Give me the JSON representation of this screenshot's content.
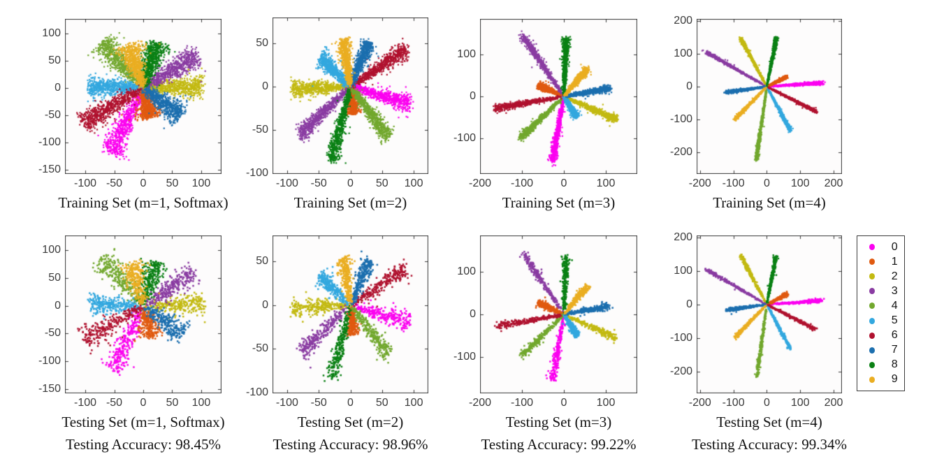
{
  "classes": [
    {
      "label": "0",
      "color": "#FB02F0"
    },
    {
      "label": "1",
      "color": "#E05A10"
    },
    {
      "label": "2",
      "color": "#C3BA12"
    },
    {
      "label": "3",
      "color": "#8A3CA2"
    },
    {
      "label": "4",
      "color": "#72A82E"
    },
    {
      "label": "5",
      "color": "#33A8DF"
    },
    {
      "label": "6",
      "color": "#B0122F"
    },
    {
      "label": "7",
      "color": "#1C6FAF"
    },
    {
      "label": "8",
      "color": "#0A8014"
    },
    {
      "label": "9",
      "color": "#EAAE22"
    }
  ],
  "chart_data": [
    {
      "type": "scatter",
      "id": "training-m1",
      "title": "Training Set (m=1, Softmax)",
      "caption": "",
      "xlim": [
        -135,
        135
      ],
      "ylim": [
        -158,
        127
      ],
      "xticks": [
        -100,
        -50,
        0,
        50,
        100
      ],
      "yticks": [
        100,
        50,
        0,
        -50,
        -100,
        -150
      ],
      "density": "dense",
      "spread": 11,
      "clusters": [
        {
          "class": "0",
          "angle": -115,
          "rmax": 135
        },
        {
          "class": "1",
          "angle": -77,
          "rmax": 58
        },
        {
          "class": "2",
          "angle": 2,
          "rmax": 105
        },
        {
          "class": "3",
          "angle": 33,
          "rmax": 113
        },
        {
          "class": "4",
          "angle": 131,
          "rmax": 113
        },
        {
          "class": "5",
          "angle": 179,
          "rmax": 97
        },
        {
          "class": "6",
          "angle": -148,
          "rmax": 126
        },
        {
          "class": "7",
          "angle": -38,
          "rmax": 85
        },
        {
          "class": "8",
          "angle": 74,
          "rmax": 89
        },
        {
          "class": "9",
          "angle": 107,
          "rmax": 86
        }
      ]
    },
    {
      "type": "scatter",
      "id": "training-m2",
      "title": "Training Set (m=2)",
      "caption": "",
      "xlim": [
        -123,
        123
      ],
      "ylim": [
        -101,
        80
      ],
      "xticks": [
        -100,
        -50,
        0,
        50,
        100
      ],
      "yticks": [
        50,
        0,
        -50,
        -100
      ],
      "density": "dense",
      "spread": 5.5,
      "clusters": [
        {
          "class": "0",
          "angle": -12,
          "rmax": 99
        },
        {
          "class": "1",
          "angle": -80,
          "rmax": 33
        },
        {
          "class": "2",
          "angle": 182,
          "rmax": 96
        },
        {
          "class": "3",
          "angle": -145,
          "rmax": 100
        },
        {
          "class": "4",
          "angle": -44,
          "rmax": 86
        },
        {
          "class": "5",
          "angle": 145,
          "rmax": 60
        },
        {
          "class": "6",
          "angle": 26,
          "rmax": 101
        },
        {
          "class": "7",
          "angle": 60,
          "rmax": 61
        },
        {
          "class": "8",
          "angle": -109,
          "rmax": 93
        },
        {
          "class": "9",
          "angle": 102,
          "rmax": 57
        }
      ]
    },
    {
      "type": "scatter",
      "id": "training-m3",
      "title": "Training Set (m=3)",
      "caption": "",
      "xlim": [
        -200,
        175
      ],
      "ylim": [
        -185,
        185
      ],
      "xticks": [
        -200,
        -100,
        0,
        100
      ],
      "yticks": [
        100,
        0,
        -100
      ],
      "density": "dense",
      "spread": 4.5,
      "clusters": [
        {
          "class": "0",
          "angle": -100,
          "rmax": 162
        },
        {
          "class": "1",
          "angle": 156,
          "rmax": 68
        },
        {
          "class": "2",
          "angle": -24,
          "rmax": 140
        },
        {
          "class": "3",
          "angle": 124,
          "rmax": 179
        },
        {
          "class": "4",
          "angle": -136,
          "rmax": 146
        },
        {
          "class": "5",
          "angle": -58,
          "rmax": 61
        },
        {
          "class": "6",
          "angle": 190,
          "rmax": 171
        },
        {
          "class": "7",
          "angle": 10,
          "rmax": 114
        },
        {
          "class": "8",
          "angle": 88,
          "rmax": 142
        },
        {
          "class": "9",
          "angle": 50,
          "rmax": 89
        }
      ]
    },
    {
      "type": "scatter",
      "id": "training-m4",
      "title": "Training Set (m=4)",
      "caption": "",
      "xlim": [
        -210,
        225
      ],
      "ylim": [
        -265,
        206
      ],
      "xticks": [
        -200,
        -100,
        0,
        100,
        200
      ],
      "yticks": [
        200,
        100,
        0,
        -100,
        -200
      ],
      "density": "dense",
      "spread": 2.7,
      "clusters": [
        {
          "class": "0",
          "angle": 4,
          "rmax": 172
        },
        {
          "class": "1",
          "angle": 27,
          "rmax": 70
        },
        {
          "class": "2",
          "angle": 118,
          "rmax": 170
        },
        {
          "class": "3",
          "angle": 150,
          "rmax": 216
        },
        {
          "class": "4",
          "angle": -98,
          "rmax": 227
        },
        {
          "class": "5",
          "angle": -62,
          "rmax": 156
        },
        {
          "class": "6",
          "angle": -27,
          "rmax": 171
        },
        {
          "class": "7",
          "angle": 188,
          "rmax": 126
        },
        {
          "class": "8",
          "angle": 79,
          "rmax": 155
        },
        {
          "class": "9",
          "angle": -134,
          "rmax": 141
        }
      ]
    },
    {
      "type": "scatter",
      "id": "testing-m1",
      "title": "Testing Set (m=1, Softmax)",
      "caption": "Testing Accuracy: 98.45%",
      "xlim": [
        -135,
        135
      ],
      "ylim": [
        -158,
        127
      ],
      "xticks": [
        -100,
        -50,
        0,
        50,
        100
      ],
      "yticks": [
        100,
        50,
        0,
        -50,
        -100,
        -150
      ],
      "density": "sparse",
      "spread": 11.5,
      "clusters": [
        {
          "class": "0",
          "angle": -114,
          "rmax": 132
        },
        {
          "class": "1",
          "angle": -76,
          "rmax": 60
        },
        {
          "class": "2",
          "angle": 1,
          "rmax": 108
        },
        {
          "class": "3",
          "angle": 34,
          "rmax": 110
        },
        {
          "class": "4",
          "angle": 130,
          "rmax": 115
        },
        {
          "class": "5",
          "angle": 178,
          "rmax": 95
        },
        {
          "class": "6",
          "angle": -149,
          "rmax": 122
        },
        {
          "class": "7",
          "angle": -37,
          "rmax": 88
        },
        {
          "class": "8",
          "angle": 75,
          "rmax": 85
        },
        {
          "class": "9",
          "angle": 106,
          "rmax": 84
        }
      ]
    },
    {
      "type": "scatter",
      "id": "testing-m2",
      "title": "Testing Set (m=2)",
      "caption": "Testing Accuracy: 98.96%",
      "xlim": [
        -123,
        123
      ],
      "ylim": [
        -101,
        80
      ],
      "xticks": [
        -100,
        -50,
        0,
        50,
        100
      ],
      "yticks": [
        50,
        0,
        -50,
        -100
      ],
      "density": "sparse",
      "spread": 5.8,
      "clusters": [
        {
          "class": "0",
          "angle": -12,
          "rmax": 98
        },
        {
          "class": "1",
          "angle": -81,
          "rmax": 35
        },
        {
          "class": "2",
          "angle": 182,
          "rmax": 95
        },
        {
          "class": "3",
          "angle": -145,
          "rmax": 99
        },
        {
          "class": "4",
          "angle": -44,
          "rmax": 85
        },
        {
          "class": "5",
          "angle": 145,
          "rmax": 61
        },
        {
          "class": "6",
          "angle": 26,
          "rmax": 100
        },
        {
          "class": "7",
          "angle": 60,
          "rmax": 62
        },
        {
          "class": "8",
          "angle": -109,
          "rmax": 92
        },
        {
          "class": "9",
          "angle": 101,
          "rmax": 57
        }
      ]
    },
    {
      "type": "scatter",
      "id": "testing-m3",
      "title": "Testing Set (m=3)",
      "caption": "Testing Accuracy: 99.22%",
      "xlim": [
        -200,
        175
      ],
      "ylim": [
        -185,
        185
      ],
      "xticks": [
        -200,
        -100,
        0,
        100
      ],
      "yticks": [
        100,
        0,
        -100
      ],
      "density": "sparse",
      "spread": 4.8,
      "clusters": [
        {
          "class": "0",
          "angle": -100,
          "rmax": 160
        },
        {
          "class": "1",
          "angle": 156,
          "rmax": 70
        },
        {
          "class": "2",
          "angle": -24,
          "rmax": 138
        },
        {
          "class": "3",
          "angle": 124,
          "rmax": 176
        },
        {
          "class": "4",
          "angle": -136,
          "rmax": 144
        },
        {
          "class": "5",
          "angle": -58,
          "rmax": 62
        },
        {
          "class": "6",
          "angle": 190,
          "rmax": 168
        },
        {
          "class": "7",
          "angle": 10,
          "rmax": 114
        },
        {
          "class": "8",
          "angle": 88,
          "rmax": 138
        },
        {
          "class": "9",
          "angle": 50,
          "rmax": 90
        }
      ]
    },
    {
      "type": "scatter",
      "id": "testing-m4",
      "title": "Testing Set (m=4)",
      "caption": "Testing Accuracy: 99.34%",
      "xlim": [
        -210,
        225
      ],
      "ylim": [
        -265,
        206
      ],
      "xticks": [
        -200,
        -100,
        0,
        100,
        200
      ],
      "yticks": [
        200,
        100,
        0,
        -100,
        -200
      ],
      "density": "sparse",
      "spread": 2.9,
      "clusters": [
        {
          "class": "0",
          "angle": 4,
          "rmax": 170
        },
        {
          "class": "1",
          "angle": 27,
          "rmax": 72
        },
        {
          "class": "2",
          "angle": 118,
          "rmax": 168
        },
        {
          "class": "3",
          "angle": 150,
          "rmax": 214
        },
        {
          "class": "4",
          "angle": -98,
          "rmax": 222
        },
        {
          "class": "5",
          "angle": -62,
          "rmax": 152
        },
        {
          "class": "6",
          "angle": -27,
          "rmax": 168
        },
        {
          "class": "7",
          "angle": 188,
          "rmax": 124
        },
        {
          "class": "8",
          "angle": 79,
          "rmax": 152
        },
        {
          "class": "9",
          "angle": -134,
          "rmax": 140
        }
      ]
    }
  ]
}
